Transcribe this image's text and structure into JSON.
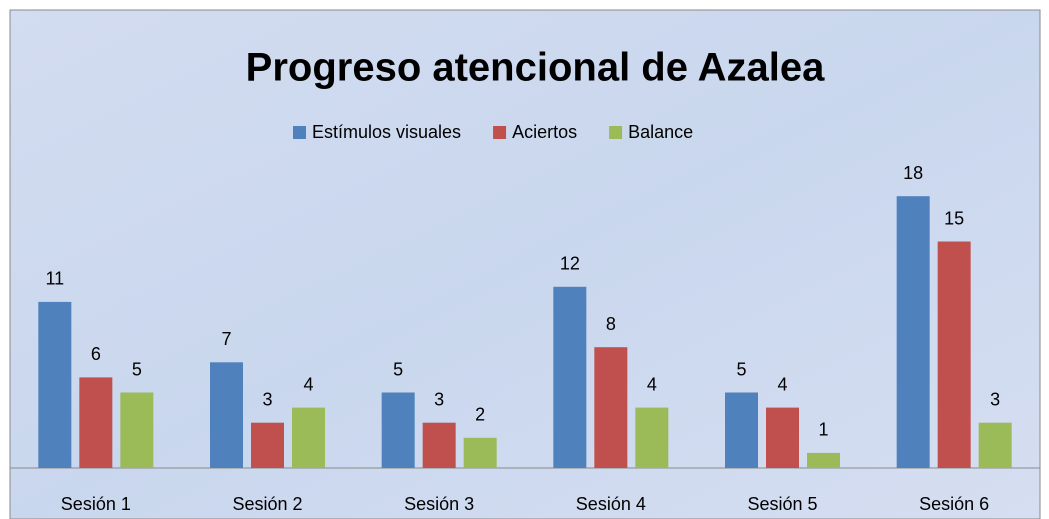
{
  "chart_data": {
    "type": "bar",
    "title": "Progreso atencional de Azalea",
    "categories": [
      "Sesión 1",
      "Sesión 2",
      "Sesión 3",
      "Sesión 4",
      "Sesión 5",
      "Sesión 6"
    ],
    "series": [
      {
        "name": "Estímulos visuales",
        "color": "#4f81bd",
        "values": [
          11,
          7,
          5,
          12,
          5,
          18
        ]
      },
      {
        "name": "Aciertos",
        "color": "#c0504d",
        "values": [
          6,
          3,
          3,
          8,
          4,
          15
        ]
      },
      {
        "name": "Balance",
        "color": "#9bbb59",
        "values": [
          5,
          4,
          2,
          4,
          1,
          3
        ]
      }
    ],
    "legend": "top"
  }
}
